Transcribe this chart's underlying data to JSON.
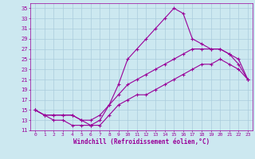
{
  "xlabel": "Windchill (Refroidissement éolien,°C)",
  "bg_color": "#cce8f0",
  "line_color": "#990099",
  "grid_color": "#aaccdd",
  "xlim": [
    -0.5,
    23.5
  ],
  "ylim": [
    11,
    36
  ],
  "xticks": [
    0,
    1,
    2,
    3,
    4,
    5,
    6,
    7,
    8,
    9,
    10,
    11,
    12,
    13,
    14,
    15,
    16,
    17,
    18,
    19,
    20,
    21,
    22,
    23
  ],
  "yticks": [
    11,
    13,
    15,
    17,
    19,
    21,
    23,
    25,
    27,
    29,
    31,
    33,
    35
  ],
  "line1_x": [
    0,
    1,
    2,
    3,
    4,
    5,
    6,
    7,
    8,
    9,
    10,
    11,
    12,
    13,
    14,
    15,
    16,
    17,
    18,
    19,
    20,
    21,
    22,
    23
  ],
  "line1_y": [
    15,
    14,
    13,
    13,
    12,
    12,
    12,
    13,
    16,
    20,
    25,
    27,
    29,
    31,
    33,
    35,
    34,
    29,
    28,
    27,
    27,
    26,
    24,
    21
  ],
  "line2_x": [
    0,
    1,
    2,
    3,
    4,
    5,
    6,
    7,
    8,
    9,
    10,
    11,
    12,
    13,
    14,
    15,
    16,
    17,
    18,
    19,
    20,
    21,
    22,
    23
  ],
  "line2_y": [
    15,
    14,
    14,
    14,
    14,
    13,
    13,
    14,
    16,
    18,
    20,
    21,
    22,
    23,
    24,
    25,
    26,
    27,
    27,
    27,
    27,
    26,
    25,
    21
  ],
  "line3_x": [
    0,
    1,
    2,
    3,
    4,
    5,
    6,
    7,
    8,
    9,
    10,
    11,
    12,
    13,
    14,
    15,
    16,
    17,
    18,
    19,
    20,
    21,
    22,
    23
  ],
  "line3_y": [
    15,
    14,
    14,
    14,
    14,
    13,
    12,
    12,
    14,
    16,
    17,
    18,
    18,
    19,
    20,
    21,
    22,
    23,
    24,
    24,
    25,
    24,
    23,
    21
  ]
}
